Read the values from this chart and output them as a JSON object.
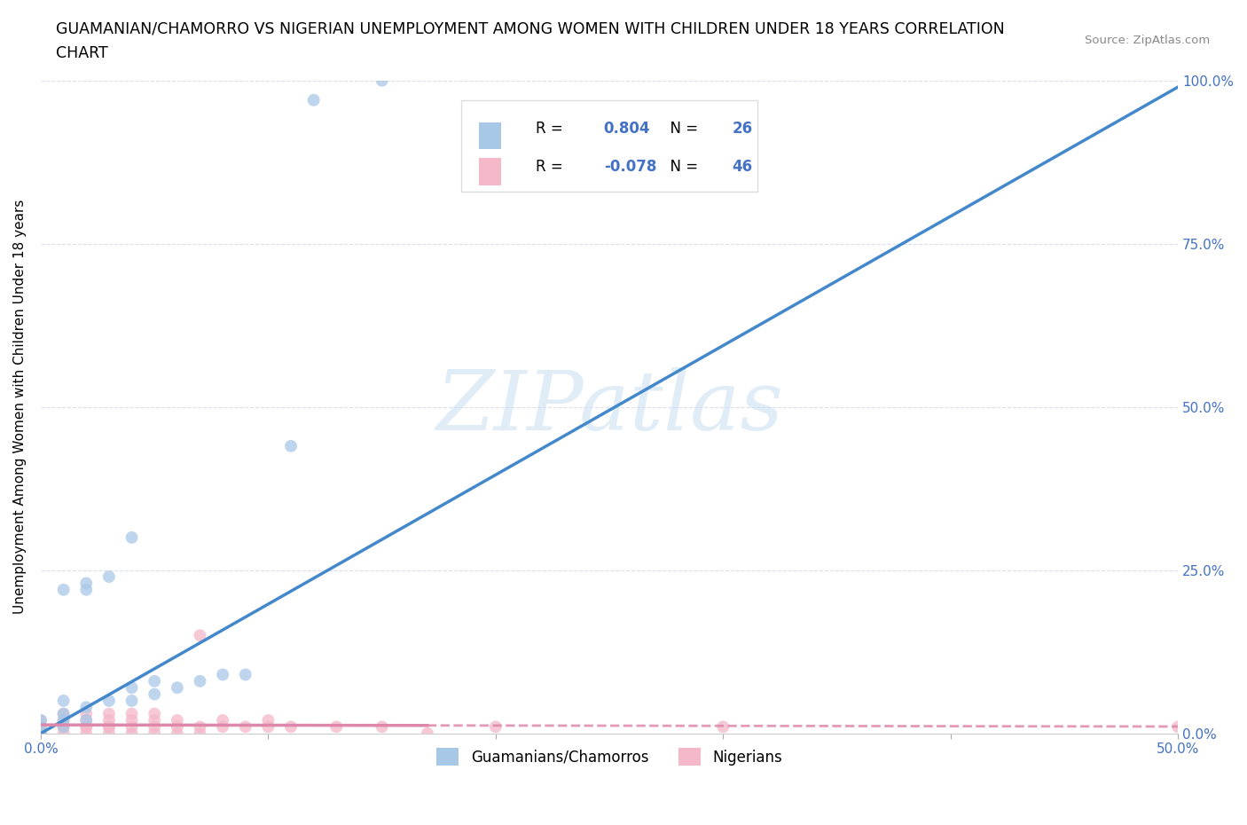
{
  "title_line1": "GUAMANIAN/CHAMORRO VS NIGERIAN UNEMPLOYMENT AMONG WOMEN WITH CHILDREN UNDER 18 YEARS CORRELATION",
  "title_line2": "CHART",
  "source": "Source: ZipAtlas.com",
  "ylabel": "Unemployment Among Women with Children Under 18 years",
  "xlim": [
    0.0,
    0.5
  ],
  "ylim": [
    0.0,
    1.0
  ],
  "xticks": [
    0.0,
    0.1,
    0.2,
    0.3,
    0.4,
    0.5
  ],
  "xticklabels": [
    "0.0%",
    "",
    "",
    "",
    "",
    "50.0%"
  ],
  "yticks": [
    0.0,
    0.25,
    0.5,
    0.75,
    1.0
  ],
  "yticklabels": [
    "0.0%",
    "25.0%",
    "50.0%",
    "75.0%",
    "100.0%"
  ],
  "watermark": "ZIPatlas",
  "blue_color": "#a8c8e8",
  "pink_color": "#f4b8c8",
  "trend_blue": "#4488cc",
  "trend_pink": "#dd88aa",
  "axis_color": "#4472c4",
  "tick_color": "#4472c4",
  "grid_color": "#ddddee",
  "guamanian_x": [
    0.0,
    0.0,
    0.0,
    0.01,
    0.01,
    0.01,
    0.01,
    0.01,
    0.02,
    0.02,
    0.02,
    0.02,
    0.03,
    0.03,
    0.04,
    0.04,
    0.04,
    0.05,
    0.05,
    0.06,
    0.07,
    0.08,
    0.09,
    0.11,
    0.12,
    0.15
  ],
  "guamanian_y": [
    0.0,
    0.01,
    0.02,
    0.01,
    0.02,
    0.03,
    0.05,
    0.22,
    0.02,
    0.04,
    0.22,
    0.23,
    0.05,
    0.24,
    0.05,
    0.07,
    0.3,
    0.06,
    0.08,
    0.07,
    0.08,
    0.09,
    0.09,
    0.44,
    0.97,
    1.0
  ],
  "nigerian_x": [
    0.0,
    0.0,
    0.0,
    0.0,
    0.0,
    0.01,
    0.01,
    0.01,
    0.01,
    0.01,
    0.02,
    0.02,
    0.02,
    0.02,
    0.02,
    0.03,
    0.03,
    0.03,
    0.03,
    0.03,
    0.04,
    0.04,
    0.04,
    0.04,
    0.05,
    0.05,
    0.05,
    0.05,
    0.06,
    0.06,
    0.06,
    0.07,
    0.07,
    0.07,
    0.08,
    0.08,
    0.09,
    0.1,
    0.1,
    0.11,
    0.13,
    0.15,
    0.17,
    0.2,
    0.3,
    0.5
  ],
  "nigerian_y": [
    0.0,
    0.0,
    0.01,
    0.01,
    0.02,
    0.0,
    0.01,
    0.01,
    0.02,
    0.03,
    0.0,
    0.01,
    0.01,
    0.02,
    0.03,
    0.0,
    0.01,
    0.01,
    0.02,
    0.03,
    0.0,
    0.01,
    0.02,
    0.03,
    0.0,
    0.01,
    0.02,
    0.03,
    0.0,
    0.01,
    0.02,
    0.0,
    0.01,
    0.15,
    0.01,
    0.02,
    0.01,
    0.01,
    0.02,
    0.01,
    0.01,
    0.01,
    0.0,
    0.01,
    0.01,
    0.01
  ],
  "legend_entries": [
    {
      "label": "Guamanians/Chamorros",
      "color": "#a8c8e8"
    },
    {
      "label": "Nigerians",
      "color": "#f4b8c8"
    }
  ],
  "stats_box": {
    "r1": "0.804",
    "n1": "26",
    "r2": "-0.078",
    "n2": "46"
  }
}
